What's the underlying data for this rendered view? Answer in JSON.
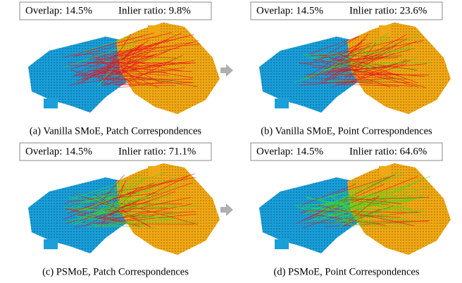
{
  "panels": [
    {
      "overlap": "Overlap: 14.5%",
      "inlier": "Inlier ratio: 9.8%",
      "caption": "(a) Vanilla SMoE, Patch Correspondences"
    },
    {
      "overlap": "Overlap: 14.5%",
      "inlier": "Inlier ratio: 23.6%",
      "caption": "(b) Vanilla SMoE, Point Correspondences"
    },
    {
      "overlap": "Overlap: 14.5%",
      "inlier": "Inlier ratio: 71.1%",
      "caption": "(c) PSMoE, Patch Correspondences"
    },
    {
      "overlap": "Overlap: 14.5%",
      "inlier": "Inlier ratio: 64.6%",
      "caption": "(d) PSMoE, Point Correspondences"
    }
  ]
}
